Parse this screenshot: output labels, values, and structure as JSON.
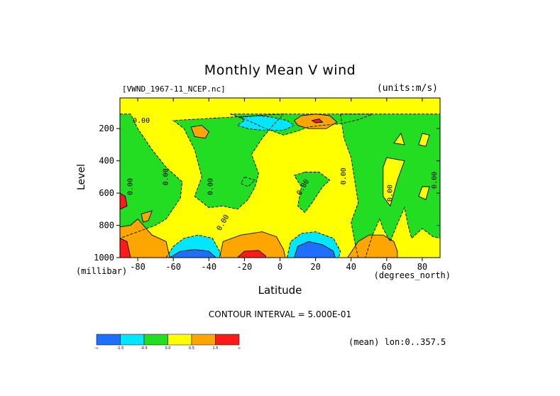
{
  "title": "Monthly Mean V wind",
  "dataset_label": "[VWND_1967-11_NCEP.nc]",
  "units_label": "(units:m/s)",
  "contour_interval_label": "CONTOUR INTERVAL = 5.000E-01",
  "mean_label": "(mean) lon:0..357.5",
  "chart_data": {
    "type": "heatmap",
    "title": "Monthly Mean V wind",
    "xlabel": "Latitude",
    "x_unit": "(degrees_north)",
    "ylabel": "Level",
    "y_unit": "(millibar)",
    "xlim": [
      -90,
      90
    ],
    "ylim": [
      1000,
      10
    ],
    "y_inverted": true,
    "x_ticks": [
      -80,
      -60,
      -40,
      -20,
      0,
      20,
      40,
      60,
      80
    ],
    "x_tick_labels": [
      "-80",
      "-60",
      "-40",
      "-20",
      "0",
      "20",
      "40",
      "60",
      "80"
    ],
    "y_ticks": [
      200,
      400,
      600,
      800,
      1000
    ],
    "y_tick_labels": [
      "200",
      "400",
      "600",
      "800",
      "1000"
    ],
    "contour_interval": 0.5,
    "contour_labels": [
      "0.00",
      "0.00",
      "0.00",
      "0.00",
      "0.00",
      "0.00",
      "0.00",
      "0.00",
      "0.00"
    ],
    "colorbar": {
      "bins": [
        {
          "range": "< -1.5",
          "color": "#1e6fff"
        },
        {
          "range": "-1.5 to -0.5",
          "color": "#00e6ff"
        },
        {
          "range": "-0.5 to 0.0",
          "color": "#22dd22"
        },
        {
          "range": "0.0 to 0.5",
          "color": "#ffff00"
        },
        {
          "range": "0.5 to 1.5",
          "color": "#ffa500"
        },
        {
          "range": "> 1.5",
          "color": "#ff1a1a"
        }
      ],
      "tick_labels": [
        "-∞",
        "-1.5",
        "-0.5",
        "0.0",
        "0.5",
        "1.5",
        "∞"
      ]
    },
    "regions": [
      {
        "level": -0.25,
        "color": "#22dd22",
        "points": [
          [
            -90,
            110
          ],
          [
            -84,
            110
          ],
          [
            -80,
            200
          ],
          [
            -72,
            330
          ],
          [
            -64,
            440
          ],
          [
            -55,
            530
          ],
          [
            -56,
            630
          ],
          [
            -64,
            760
          ],
          [
            -70,
            800
          ],
          [
            -80,
            840
          ],
          [
            -90,
            880
          ]
        ]
      },
      {
        "level": -0.25,
        "color": "#22dd22",
        "points": [
          [
            -60,
            150
          ],
          [
            -54,
            200
          ],
          [
            -48,
            330
          ],
          [
            -44,
            500
          ],
          [
            -48,
            620
          ],
          [
            -40,
            690
          ],
          [
            -32,
            680
          ],
          [
            -24,
            700
          ],
          [
            -18,
            640
          ],
          [
            -14,
            560
          ],
          [
            -12,
            480
          ],
          [
            -16,
            360
          ],
          [
            -10,
            260
          ],
          [
            -4,
            180
          ],
          [
            2,
            110
          ]
        ]
      },
      {
        "level": -0.25,
        "color": "#22dd22",
        "points": [
          [
            -28,
            110
          ],
          [
            -18,
            150
          ],
          [
            -8,
            200
          ],
          [
            2,
            240
          ],
          [
            10,
            215
          ],
          [
            16,
            190
          ],
          [
            24,
            180
          ],
          [
            34,
            170
          ],
          [
            44,
            145
          ],
          [
            52,
            110
          ]
        ]
      },
      {
        "level": -0.25,
        "color": "#22dd22",
        "points": [
          [
            -20,
            500
          ],
          [
            -14,
            520
          ],
          [
            -18,
            560
          ],
          [
            -22,
            540
          ]
        ]
      },
      {
        "level": -0.25,
        "color": "#22dd22",
        "points": [
          [
            14,
            470
          ],
          [
            22,
            470
          ],
          [
            28,
            520
          ],
          [
            24,
            560
          ],
          [
            18,
            660
          ],
          [
            14,
            720
          ],
          [
            10,
            680
          ],
          [
            12,
            560
          ],
          [
            8,
            490
          ]
        ]
      },
      {
        "level": -0.25,
        "color": "#22dd22",
        "points": [
          [
            34,
            110
          ],
          [
            36,
            260
          ],
          [
            40,
            380
          ],
          [
            42,
            520
          ],
          [
            44,
            660
          ],
          [
            40,
            780
          ],
          [
            42,
            900
          ],
          [
            44,
            1000
          ],
          [
            48,
            1000
          ],
          [
            52,
            860
          ],
          [
            56,
            760
          ],
          [
            58,
            820
          ],
          [
            62,
            900
          ],
          [
            66,
            790
          ],
          [
            70,
            690
          ],
          [
            72,
            800
          ],
          [
            74,
            880
          ],
          [
            80,
            820
          ],
          [
            86,
            870
          ],
          [
            90,
            880
          ],
          [
            90,
            110
          ]
        ]
      },
      {
        "level": 0.25,
        "color": "#ffff00",
        "points": [
          [
            64,
            290
          ],
          [
            68,
            230
          ],
          [
            70,
            300
          ]
        ]
      },
      {
        "level": 0.25,
        "color": "#ffff00",
        "points": [
          [
            80,
            230
          ],
          [
            84,
            240
          ],
          [
            82,
            310
          ],
          [
            78,
            300
          ]
        ]
      },
      {
        "level": 0.25,
        "color": "#ffff00",
        "points": [
          [
            60,
            380
          ],
          [
            70,
            400
          ],
          [
            66,
            520
          ],
          [
            62,
            680
          ],
          [
            58,
            620
          ],
          [
            58,
            440
          ]
        ]
      },
      {
        "level": 0.25,
        "color": "#ffff00",
        "points": [
          [
            80,
            560
          ],
          [
            84,
            560
          ],
          [
            82,
            640
          ],
          [
            78,
            620
          ]
        ]
      },
      {
        "level": -1.0,
        "color": "#00e6ff",
        "points": [
          [
            -22,
            130
          ],
          [
            -12,
            120
          ],
          [
            -4,
            130
          ],
          [
            4,
            150
          ],
          [
            8,
            180
          ],
          [
            2,
            210
          ],
          [
            -10,
            210
          ],
          [
            -18,
            200
          ],
          [
            -24,
            180
          ],
          [
            -20,
            150
          ]
        ]
      },
      {
        "level": -1.0,
        "color": "#00e6ff",
        "points": [
          [
            -64,
            1000
          ],
          [
            -60,
            930
          ],
          [
            -54,
            880
          ],
          [
            -46,
            860
          ],
          [
            -38,
            880
          ],
          [
            -34,
            960
          ],
          [
            -33,
            1000
          ]
        ]
      },
      {
        "level": -1.0,
        "color": "#00e6ff",
        "points": [
          [
            4,
            1000
          ],
          [
            6,
            900
          ],
          [
            12,
            850
          ],
          [
            20,
            840
          ],
          [
            30,
            880
          ],
          [
            34,
            960
          ],
          [
            33,
            1000
          ]
        ]
      },
      {
        "level": -1.8,
        "color": "#1e6fff",
        "points": [
          [
            -62,
            1000
          ],
          [
            -56,
            960
          ],
          [
            -48,
            950
          ],
          [
            -40,
            960
          ],
          [
            -36,
            1000
          ]
        ]
      },
      {
        "level": -1.8,
        "color": "#1e6fff",
        "points": [
          [
            8,
            1000
          ],
          [
            10,
            930
          ],
          [
            16,
            900
          ],
          [
            24,
            920
          ],
          [
            30,
            960
          ],
          [
            31,
            1000
          ]
        ]
      },
      {
        "level": 1.0,
        "color": "#ffa500",
        "points": [
          [
            -50,
            190
          ],
          [
            -44,
            180
          ],
          [
            -40,
            220
          ],
          [
            -42,
            260
          ],
          [
            -48,
            250
          ]
        ]
      },
      {
        "level": 1.0,
        "color": "#ffa500",
        "points": [
          [
            -78,
            730
          ],
          [
            -72,
            710
          ],
          [
            -74,
            770
          ],
          [
            -77,
            780
          ]
        ]
      },
      {
        "level": 1.0,
        "color": "#ffa500",
        "points": [
          [
            -84,
            800
          ],
          [
            -80,
            760
          ],
          [
            -72,
            860
          ],
          [
            -64,
            900
          ],
          [
            -62,
            1000
          ],
          [
            -90,
            1000
          ],
          [
            -90,
            810
          ]
        ]
      },
      {
        "level": 1.0,
        "color": "#ffa500",
        "points": [
          [
            -34,
            1000
          ],
          [
            -32,
            900
          ],
          [
            -22,
            860
          ],
          [
            -10,
            840
          ],
          [
            -2,
            870
          ],
          [
            2,
            950
          ],
          [
            3,
            1000
          ]
        ]
      },
      {
        "level": 1.0,
        "color": "#ffa500",
        "points": [
          [
            38,
            1000
          ],
          [
            44,
            900
          ],
          [
            50,
            860
          ],
          [
            58,
            860
          ],
          [
            64,
            900
          ],
          [
            66,
            960
          ],
          [
            66,
            1000
          ]
        ]
      },
      {
        "level": 1.0,
        "color": "#ffa500",
        "points": [
          [
            8,
            150
          ],
          [
            12,
            120
          ],
          [
            20,
            110
          ],
          [
            28,
            120
          ],
          [
            32,
            160
          ],
          [
            26,
            200
          ],
          [
            16,
            200
          ],
          [
            10,
            180
          ]
        ]
      },
      {
        "level": 1.8,
        "color": "#ff1a1a",
        "points": [
          [
            -90,
            600
          ],
          [
            -87,
            620
          ],
          [
            -86,
            680
          ],
          [
            -90,
            700
          ]
        ]
      },
      {
        "level": 1.8,
        "color": "#ff1a1a",
        "points": [
          [
            -90,
            880
          ],
          [
            -86,
            900
          ],
          [
            -84,
            1000
          ],
          [
            -90,
            1000
          ]
        ]
      },
      {
        "level": 1.8,
        "color": "#ff1a1a",
        "points": [
          [
            -24,
            1000
          ],
          [
            -20,
            960
          ],
          [
            -12,
            955
          ],
          [
            -8,
            990
          ],
          [
            -8,
            1000
          ]
        ]
      },
      {
        "level": 1.8,
        "color": "#ff1a1a",
        "points": [
          [
            18,
            150
          ],
          [
            22,
            140
          ],
          [
            24,
            160
          ],
          [
            20,
            165
          ]
        ]
      }
    ]
  }
}
